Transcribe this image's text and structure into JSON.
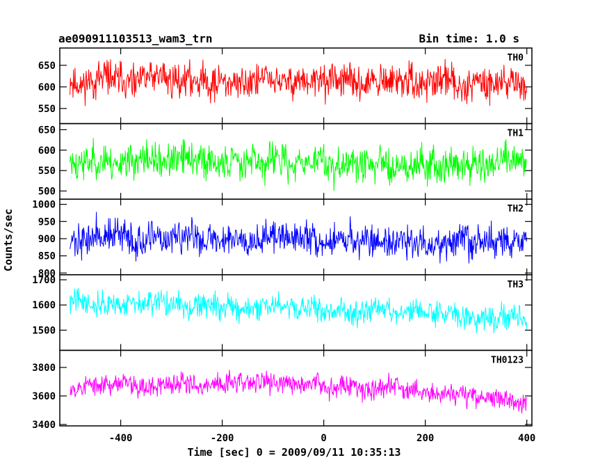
{
  "header": {
    "title": "ae090911103513_wam3_trn",
    "bin_time": "Bin time: 1.0 s"
  },
  "chart_data": {
    "type": "line",
    "title": "ae090911103513_wam3_trn",
    "subtitle": "Bin time: 1.0 s",
    "xlabel": "Time [sec] 0 = 2009/09/11 10:35:13",
    "ylabel": "Counts/sec",
    "xlim": [
      -520,
      410
    ],
    "x_range": [
      -500,
      400
    ],
    "x_step": 1,
    "x_ticks": [
      -400,
      -200,
      0,
      200,
      400
    ],
    "grid": false,
    "legend": "none",
    "series": [
      {
        "name": "TH0",
        "color": "#ff0000",
        "ylim": [
          515,
          690
        ],
        "y_ticks": [
          550,
          600,
          650
        ],
        "level": [
          [
            -500,
            615
          ],
          [
            400,
            610
          ]
        ],
        "noise": 45,
        "seed": 11
      },
      {
        "name": "TH1",
        "color": "#00ff00",
        "ylim": [
          480,
          665
        ],
        "y_ticks": [
          500,
          550,
          600,
          650
        ],
        "level": [
          [
            -500,
            575
          ],
          [
            400,
            565
          ]
        ],
        "noise": 48,
        "seed": 23
      },
      {
        "name": "TH2",
        "color": "#0000ff",
        "ylim": [
          795,
          1015
        ],
        "y_ticks": [
          800,
          850,
          900,
          950,
          1000
        ],
        "level": [
          [
            -500,
            905
          ],
          [
            400,
            890
          ]
        ],
        "noise": 55,
        "seed": 37
      },
      {
        "name": "TH3",
        "color": "#00ffff",
        "ylim": [
          1420,
          1720
        ],
        "y_ticks": [
          1500,
          1600,
          1700
        ],
        "level": [
          [
            -500,
            1610
          ],
          [
            -100,
            1590
          ],
          [
            150,
            1570
          ],
          [
            400,
            1550
          ]
        ],
        "noise": 55,
        "seed": 41
      },
      {
        "name": "TH0123",
        "color": "#ff00ff",
        "ylim": [
          3390,
          3920
        ],
        "y_ticks": [
          3400,
          3600,
          3800
        ],
        "level": [
          [
            -500,
            3670
          ],
          [
            -100,
            3690
          ],
          [
            150,
            3660
          ],
          [
            400,
            3560
          ]
        ],
        "noise": 85,
        "seed": 53
      }
    ]
  }
}
